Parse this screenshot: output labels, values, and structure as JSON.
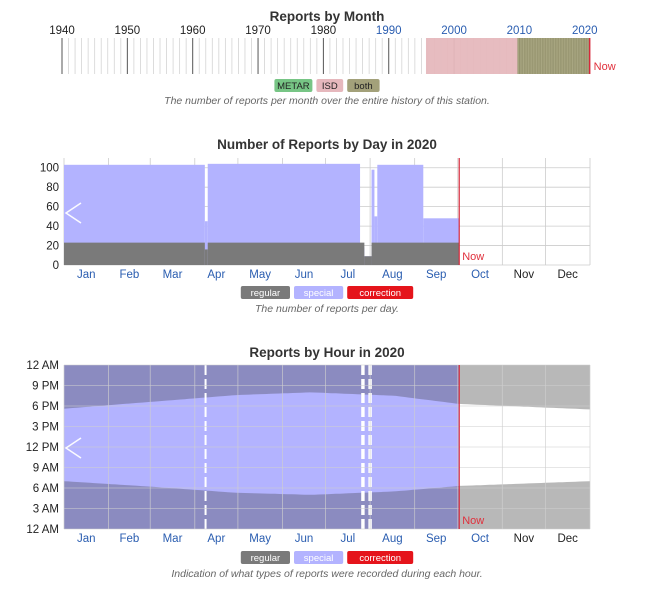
{
  "colors": {
    "metar": "#77c585",
    "isd": "#e6b8bd",
    "both": "#a3a17a",
    "regular": "#7a7a7a",
    "special": "#b3b3ff",
    "correction": "#e5141b",
    "now_line": "#d6283a",
    "overlay": "#8888bb",
    "grid": "#cccccc"
  },
  "monthly": {
    "title": "Reports by Month",
    "decades": [
      "1940",
      "1950",
      "1960",
      "1970",
      "1980",
      "1990",
      "2000",
      "2010",
      "2020"
    ],
    "xlim": [
      1940,
      2020.8
    ],
    "now_label": "Now",
    "now_year": 2020.75,
    "legend": [
      "METAR",
      "ISD",
      "both"
    ],
    "caption": "The number of reports per month over the entire history of this station.",
    "chart_data": {
      "type": "bar",
      "x_unit": "year",
      "periods": [
        {
          "source": "ISD",
          "start": 1995.7,
          "end": 2009.7
        },
        {
          "source": "both",
          "start": 2009.7,
          "end": 2020.75
        }
      ]
    }
  },
  "daily": {
    "title": "Number of Reports by Day in 2020",
    "yticks": [
      "100",
      "80",
      "60",
      "40",
      "20",
      "0"
    ],
    "months": [
      "Jan",
      "Feb",
      "Mar",
      "Apr",
      "May",
      "Jun",
      "Jul",
      "Aug",
      "Sep",
      "Oct",
      "Nov",
      "Dec"
    ],
    "now_label": "Now",
    "legend": [
      "regular",
      "special",
      "correction"
    ],
    "caption": "The number of reports per day.",
    "chart_data": {
      "type": "area",
      "ylim": [
        0,
        110
      ],
      "series": [
        {
          "name": "regular",
          "segments": [
            {
              "start_day": 0,
              "end_day": 98,
              "value": 23
            },
            {
              "start_day": 98,
              "end_day": 100,
              "value": 16
            },
            {
              "start_day": 100,
              "end_day": 209,
              "value": 23
            },
            {
              "start_day": 209,
              "end_day": 214,
              "value": 9
            },
            {
              "start_day": 214,
              "end_day": 275,
              "value": 23
            }
          ]
        },
        {
          "name": "special",
          "segments": [
            {
              "start_day": 0,
              "end_day": 98,
              "value": 103
            },
            {
              "start_day": 98,
              "end_day": 100,
              "value": 45
            },
            {
              "start_day": 100,
              "end_day": 206,
              "value": 104
            },
            {
              "start_day": 206,
              "end_day": 209,
              "value": 18
            },
            {
              "start_day": 209,
              "end_day": 214,
              "value": 9
            },
            {
              "start_day": 214,
              "end_day": 216,
              "value": 98
            },
            {
              "start_day": 216,
              "end_day": 218,
              "value": 50
            },
            {
              "start_day": 218,
              "end_day": 250,
              "value": 103
            },
            {
              "start_day": 250,
              "end_day": 275,
              "value": 48
            }
          ]
        }
      ],
      "now_day": 275
    }
  },
  "hourly": {
    "title": "Reports by Hour in 2020",
    "yticks": [
      "12 AM",
      "9 PM",
      "6 PM",
      "3 PM",
      "12 PM",
      "9 AM",
      "6 AM",
      "3 AM",
      "12 AM"
    ],
    "months": [
      "Jan",
      "Feb",
      "Mar",
      "Apr",
      "May",
      "Jun",
      "Jul",
      "Aug",
      "Sep",
      "Oct",
      "Nov",
      "Dec"
    ],
    "now_label": "Now",
    "legend": [
      "regular",
      "special",
      "correction"
    ],
    "caption": "Indication of what types of reports were recorded during each hour.",
    "chart_data": {
      "type": "heatmap",
      "x_unit": "day of year",
      "y_unit": "hour of day",
      "ylim": [
        0,
        24
      ],
      "xlim": [
        0,
        366
      ],
      "now_day": 275,
      "night_band": {
        "sunrise": [
          [
            0,
            7.0
          ],
          [
            60,
            6.2
          ],
          [
            120,
            5.3
          ],
          [
            172,
            5.0
          ],
          [
            230,
            5.5
          ],
          [
            275,
            6.3
          ],
          [
            366,
            7.0
          ]
        ],
        "sunset": [
          [
            0,
            17.6
          ],
          [
            60,
            18.6
          ],
          [
            120,
            19.6
          ],
          [
            172,
            20.0
          ],
          [
            230,
            19.5
          ],
          [
            275,
            18.3
          ],
          [
            366,
            17.5
          ]
        ]
      },
      "gaps_days": [
        98,
        207,
        208,
        212,
        213
      ]
    }
  }
}
